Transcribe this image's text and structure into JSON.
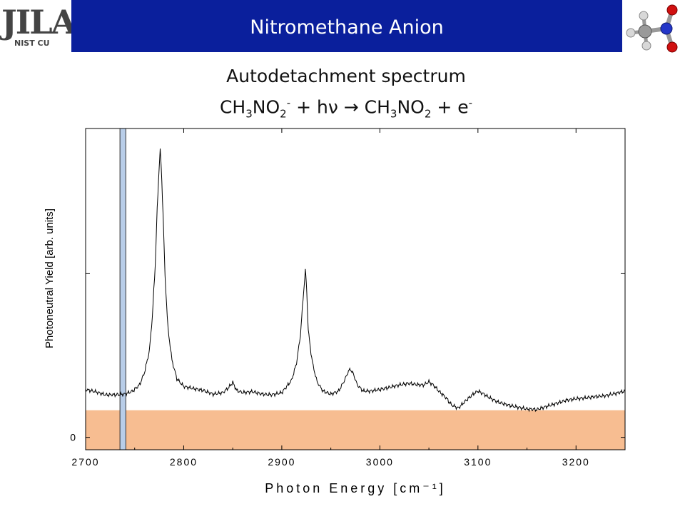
{
  "header": {
    "title": "Nitromethane Anion",
    "logo_main": "JILA",
    "logo_sub": "NIST CU"
  },
  "slide": {
    "title": "Autodetachment spectrum",
    "equation": {
      "reactant_a": "CH",
      "reactant_sub1": "3",
      "reactant_b": "NO",
      "reactant_sub2": "2",
      "reactant_charge": "-",
      "plus_photon": " + h",
      "nu": "ν",
      "arrow": " → ",
      "product_a": "CH",
      "product_sub1": "3",
      "product_b": "NO",
      "product_sub2": "2",
      "plus_electron": " + e",
      "electron_charge": "-"
    }
  },
  "colors": {
    "header_bar": "#0a1f9c",
    "baseline_band": "#f7bd91",
    "marker_band": "#b8cde8",
    "trace": "#000000"
  },
  "chart_data": {
    "type": "line",
    "title": "",
    "xlabel": "Photon Energy [cm⁻¹]",
    "ylabel": "Photoneutral Yield [arb. units]",
    "xlim": [
      2700,
      3250
    ],
    "ylim": [
      -0.04,
      1.0
    ],
    "xticks": [
      2700,
      2800,
      2900,
      3000,
      3100,
      3200
    ],
    "xtick_labels": [
      "2700",
      "2800",
      "2900",
      "3000",
      "3100",
      "3200"
    ],
    "yticks": [
      0,
      0.53
    ],
    "ytick_labels": [
      "0",
      ""
    ],
    "grid": false,
    "baseline_band": {
      "y_top": 0.088
    },
    "marker_band": {
      "x_start": 2735,
      "x_end": 2741
    },
    "series": [
      {
        "x": [
          2700,
          2710,
          2720,
          2730,
          2740,
          2748,
          2755,
          2760,
          2765,
          2768,
          2771,
          2773,
          2775,
          2776,
          2777,
          2779,
          2781,
          2784,
          2788,
          2793,
          2800,
          2810,
          2820,
          2830,
          2840,
          2846,
          2850,
          2854,
          2860,
          2870,
          2880,
          2890,
          2900,
          2910,
          2915,
          2919,
          2921,
          2923,
          2924,
          2925,
          2926,
          2927,
          2929,
          2932,
          2936,
          2942,
          2950,
          2958,
          2964,
          2968,
          2970,
          2973,
          2977,
          2983,
          2990,
          3000,
          3010,
          3020,
          3030,
          3040,
          3045,
          3050,
          3055,
          3060,
          3067,
          3073,
          3080,
          3088,
          3095,
          3100,
          3105,
          3112,
          3120,
          3130,
          3140,
          3150,
          3160,
          3170,
          3180,
          3190,
          3200,
          3210,
          3220,
          3230,
          3240,
          3250
        ],
        "y": [
          0.155,
          0.148,
          0.138,
          0.138,
          0.14,
          0.15,
          0.17,
          0.21,
          0.28,
          0.39,
          0.56,
          0.74,
          0.88,
          0.93,
          0.88,
          0.72,
          0.52,
          0.35,
          0.25,
          0.19,
          0.165,
          0.158,
          0.152,
          0.14,
          0.145,
          0.162,
          0.178,
          0.152,
          0.145,
          0.148,
          0.14,
          0.138,
          0.145,
          0.185,
          0.24,
          0.33,
          0.42,
          0.5,
          0.54,
          0.5,
          0.43,
          0.35,
          0.29,
          0.23,
          0.18,
          0.15,
          0.14,
          0.15,
          0.185,
          0.215,
          0.22,
          0.205,
          0.17,
          0.15,
          0.15,
          0.155,
          0.162,
          0.17,
          0.175,
          0.17,
          0.17,
          0.18,
          0.168,
          0.15,
          0.13,
          0.105,
          0.095,
          0.12,
          0.14,
          0.15,
          0.142,
          0.128,
          0.115,
          0.105,
          0.098,
          0.092,
          0.09,
          0.1,
          0.11,
          0.12,
          0.125,
          0.128,
          0.132,
          0.135,
          0.142,
          0.15
        ]
      }
    ]
  }
}
